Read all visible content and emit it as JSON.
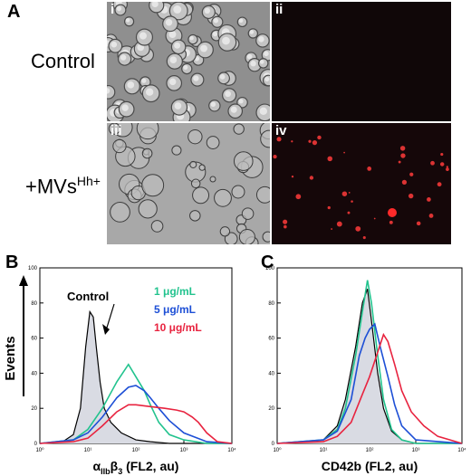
{
  "panel_A": {
    "letter": "A",
    "rows": [
      {
        "label": "Control"
      },
      {
        "label_main": "+MVs",
        "label_sup": "Hh+"
      }
    ],
    "subpanels": [
      "i",
      "ii",
      "iii",
      "iv"
    ]
  },
  "chart_data": [
    {
      "panel": "B",
      "type": "line",
      "xlabel": "αIIbβ3 (FL2, au)",
      "xlabel_parts": {
        "alpha": "α",
        "sub1": "IIb",
        "beta": "β",
        "sub2": "3",
        "rest": " (FL2, au)"
      },
      "ylabel": "Events",
      "x_scale": "log",
      "xlim": [
        1,
        10000
      ],
      "ylim": [
        0,
        100
      ],
      "x_ticks": [
        "10⁰",
        "10¹",
        "10²",
        "10³",
        "10⁴"
      ],
      "y_ticks": [
        "0",
        "20",
        "40",
        "60",
        "80",
        "100"
      ],
      "annotation": "Control",
      "legend": [
        "1 μg/mL",
        "5 μg/mL",
        "10 μg/mL"
      ],
      "colors": {
        "control": "#000000",
        "control_fill": "#d9dbe3",
        "s1": "#22c38e",
        "s2": "#1d4fd6",
        "s3": "#e8233f"
      },
      "series": [
        {
          "name": "Control",
          "x": [
            1,
            3,
            5,
            7,
            9,
            11,
            13,
            15,
            18,
            22,
            30,
            50,
            100,
            200,
            500,
            1000,
            10000
          ],
          "y": [
            0,
            1,
            5,
            20,
            55,
            75,
            72,
            55,
            35,
            20,
            12,
            6,
            2,
            1,
            0,
            0,
            0
          ]
        },
        {
          "name": "1 μg/mL",
          "x": [
            1,
            5,
            10,
            20,
            40,
            70,
            100,
            150,
            200,
            300,
            500,
            1000,
            3000,
            10000
          ],
          "y": [
            0,
            2,
            8,
            20,
            35,
            45,
            38,
            30,
            22,
            12,
            5,
            2,
            0,
            0
          ]
        },
        {
          "name": "5 μg/mL",
          "x": [
            1,
            5,
            10,
            20,
            40,
            70,
            100,
            150,
            200,
            300,
            500,
            1000,
            3000,
            10000
          ],
          "y": [
            0,
            2,
            6,
            15,
            26,
            32,
            33,
            30,
            26,
            20,
            13,
            6,
            1,
            0
          ]
        },
        {
          "name": "10 μg/mL",
          "x": [
            1,
            5,
            10,
            20,
            40,
            70,
            100,
            200,
            400,
            700,
            1000,
            1500,
            2000,
            3000,
            5000,
            10000
          ],
          "y": [
            0,
            1,
            3,
            10,
            18,
            22,
            22,
            21,
            20,
            19,
            18,
            15,
            12,
            6,
            1,
            0
          ]
        }
      ]
    },
    {
      "panel": "C",
      "type": "line",
      "xlabel": "CD42b (FL2, au)",
      "ylabel": "",
      "x_scale": "log",
      "xlim": [
        1,
        10000
      ],
      "ylim": [
        0,
        100
      ],
      "x_ticks": [
        "10⁰",
        "10¹",
        "10²",
        "10³",
        "10⁴"
      ],
      "y_ticks": [
        "0",
        "20",
        "40",
        "60",
        "80",
        "100"
      ],
      "colors": {
        "control": "#000000",
        "control_fill": "#d9dbe3",
        "s1": "#22c38e",
        "s2": "#1d4fd6",
        "s3": "#e8233f"
      },
      "series": [
        {
          "name": "Control",
          "x": [
            1,
            10,
            20,
            30,
            50,
            70,
            90,
            110,
            150,
            200,
            300,
            500,
            1000,
            10000
          ],
          "y": [
            0,
            2,
            10,
            25,
            55,
            80,
            88,
            70,
            40,
            20,
            7,
            2,
            0,
            0
          ]
        },
        {
          "name": "1 μg/mL",
          "x": [
            1,
            10,
            20,
            30,
            50,
            70,
            90,
            110,
            150,
            200,
            300,
            500,
            1000,
            10000
          ],
          "y": [
            0,
            2,
            8,
            20,
            50,
            75,
            93,
            80,
            50,
            25,
            8,
            2,
            0,
            0
          ]
        },
        {
          "name": "5 μg/mL",
          "x": [
            1,
            10,
            20,
            40,
            60,
            80,
            100,
            130,
            170,
            250,
            350,
            500,
            1000,
            10000
          ],
          "y": [
            0,
            2,
            7,
            25,
            50,
            60,
            65,
            68,
            55,
            38,
            22,
            10,
            2,
            0
          ]
        },
        {
          "name": "10 μg/mL",
          "x": [
            1,
            10,
            20,
            40,
            70,
            100,
            150,
            200,
            250,
            350,
            500,
            800,
            1500,
            3000,
            10000
          ],
          "y": [
            0,
            1,
            4,
            12,
            28,
            38,
            52,
            62,
            58,
            45,
            30,
            18,
            10,
            4,
            0
          ]
        }
      ]
    }
  ]
}
